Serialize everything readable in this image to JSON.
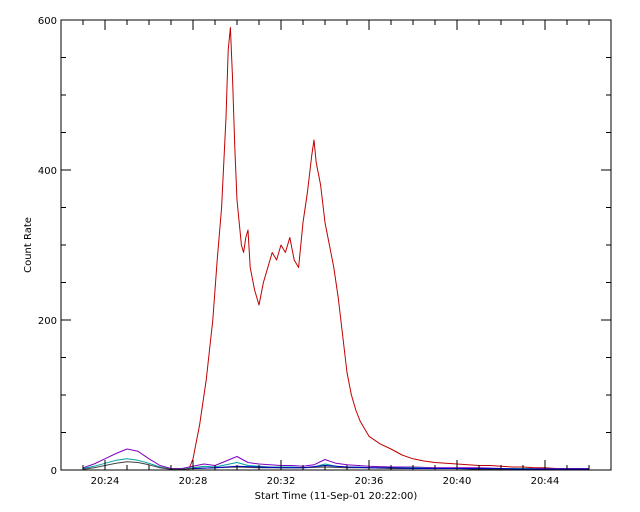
{
  "chart_data": {
    "type": "line",
    "title": "",
    "xlabel": "Start Time (11-Sep-01 20:22:00)",
    "ylabel": "Count Rate",
    "x_unit": "minutes",
    "xlim": [
      0.0,
      25.0
    ],
    "ylim": [
      0,
      600
    ],
    "x_ticks": [
      {
        "value": 2,
        "label": "20:24"
      },
      {
        "value": 6,
        "label": "20:28"
      },
      {
        "value": 10,
        "label": "20:32"
      },
      {
        "value": 14,
        "label": "20:36"
      },
      {
        "value": 18,
        "label": "20:40"
      },
      {
        "value": 22,
        "label": "20:44"
      }
    ],
    "y_ticks": [
      {
        "value": 0,
        "label": "0"
      },
      {
        "value": 200,
        "label": "200"
      },
      {
        "value": 400,
        "label": "400"
      },
      {
        "value": 600,
        "label": "600"
      }
    ],
    "grid": false,
    "legend": "none",
    "series": [
      {
        "color": "#c00000",
        "x": [
          1.0,
          1.5,
          2.0,
          2.5,
          3.0,
          3.5,
          4.0,
          4.5,
          5.0,
          5.5,
          5.8,
          6.0,
          6.3,
          6.6,
          6.9,
          7.1,
          7.3,
          7.5,
          7.6,
          7.7,
          7.8,
          7.9,
          8.0,
          8.1,
          8.2,
          8.3,
          8.4,
          8.5,
          8.6,
          8.8,
          9.0,
          9.2,
          9.4,
          9.6,
          9.8,
          10.0,
          10.2,
          10.4,
          10.6,
          10.8,
          11.0,
          11.2,
          11.4,
          11.5,
          11.6,
          11.8,
          12.0,
          12.2,
          12.4,
          12.6,
          12.8,
          13.0,
          13.2,
          13.4,
          13.6,
          13.8,
          14.0,
          14.5,
          15.0,
          15.5,
          16.0,
          16.5,
          17.0,
          17.5,
          18.0,
          18.5,
          19.0,
          19.5,
          20.0,
          20.5,
          21.0,
          21.5,
          22.0,
          22.5,
          23.0,
          23.5,
          24.0
        ],
        "y": [
          0,
          0,
          0,
          0,
          0,
          0,
          0,
          0,
          0,
          0,
          0,
          15,
          60,
          120,
          200,
          280,
          350,
          470,
          560,
          590,
          520,
          430,
          360,
          330,
          300,
          290,
          310,
          320,
          270,
          240,
          220,
          250,
          270,
          290,
          280,
          300,
          290,
          310,
          280,
          270,
          330,
          370,
          420,
          440,
          410,
          380,
          330,
          300,
          270,
          230,
          180,
          130,
          100,
          80,
          65,
          55,
          45,
          35,
          28,
          20,
          15,
          12,
          10,
          9,
          8,
          7,
          6,
          6,
          5,
          4,
          4,
          3,
          3,
          2,
          2,
          2,
          2
        ]
      },
      {
        "color": "#8000c0",
        "x": [
          1.0,
          1.5,
          2.0,
          2.5,
          3.0,
          3.5,
          4.0,
          4.5,
          5.0,
          5.5,
          6.0,
          6.5,
          7.0,
          7.5,
          8.0,
          8.5,
          9.0,
          9.5,
          10.0,
          10.5,
          11.0,
          11.5,
          12.0,
          12.5,
          13.0,
          13.5,
          14.0,
          15.0,
          16.0,
          17.0,
          18.0,
          19.0,
          20.0,
          21.0,
          22.0,
          23.0,
          24.0
        ],
        "y": [
          3,
          8,
          15,
          22,
          28,
          25,
          15,
          6,
          2,
          2,
          5,
          8,
          6,
          12,
          18,
          10,
          8,
          7,
          6,
          6,
          5,
          7,
          14,
          9,
          7,
          6,
          5,
          4,
          4,
          3,
          3,
          3,
          2,
          2,
          2,
          2,
          2
        ]
      },
      {
        "color": "#00a0a0",
        "x": [
          1.0,
          1.5,
          2.0,
          2.5,
          3.0,
          3.5,
          4.0,
          4.5,
          5.0,
          5.5,
          6.0,
          6.5,
          7.0,
          7.5,
          8.0,
          8.5,
          9.0,
          9.5,
          10.0,
          10.5,
          11.0,
          11.5,
          12.0,
          12.5,
          13.0,
          13.5,
          14.0,
          15.0,
          16.0,
          17.0,
          18.0,
          19.0,
          20.0,
          21.0,
          22.0,
          23.0,
          24.0
        ],
        "y": [
          2,
          5,
          9,
          13,
          15,
          13,
          9,
          4,
          1,
          1,
          3,
          5,
          4,
          7,
          10,
          6,
          5,
          4,
          4,
          4,
          3,
          4,
          8,
          5,
          4,
          4,
          3,
          3,
          3,
          2,
          2,
          2,
          2,
          2,
          1,
          1,
          1
        ]
      },
      {
        "color": "#404040",
        "x": [
          1.0,
          1.5,
          2.0,
          2.5,
          3.0,
          3.5,
          4.0,
          4.5,
          5.0,
          5.5,
          6.0,
          7.0,
          8.0,
          9.0,
          10.0,
          11.0,
          12.0,
          13.0,
          14.0,
          15.0,
          16.0,
          17.0,
          18.0,
          19.0,
          20.0,
          21.0,
          22.0,
          23.0,
          24.0
        ],
        "y": [
          1,
          3,
          6,
          9,
          11,
          10,
          7,
          3,
          1,
          1,
          2,
          3,
          4,
          3,
          3,
          3,
          4,
          3,
          3,
          2,
          2,
          2,
          2,
          1,
          1,
          1,
          1,
          1,
          1
        ]
      },
      {
        "color": "#0000c0",
        "x": [
          6.0,
          7.0,
          8.0,
          9.0,
          10.0,
          11.0,
          12.0,
          13.0,
          14.0,
          15.0,
          16.0,
          17.0,
          18.0,
          19.0,
          20.0,
          21.0,
          22.0,
          23.0,
          24.0
        ],
        "y": [
          2,
          3,
          5,
          4,
          3,
          3,
          6,
          4,
          3,
          3,
          2,
          2,
          2,
          2,
          2,
          1,
          1,
          1,
          1
        ]
      }
    ]
  }
}
